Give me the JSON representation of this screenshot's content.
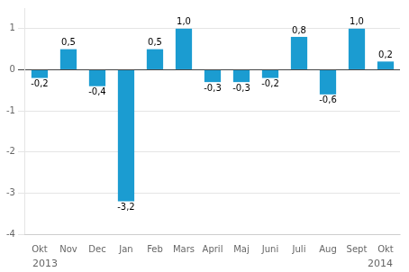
{
  "chart_data": {
    "type": "bar",
    "categories": [
      "Okt",
      "Nov",
      "Dec",
      "Jan",
      "Feb",
      "Mars",
      "April",
      "Maj",
      "Juni",
      "Juli",
      "Aug",
      "Sept",
      "Okt"
    ],
    "values": [
      -0.2,
      0.5,
      -0.4,
      -3.2,
      0.5,
      1.0,
      -0.3,
      -0.3,
      -0.2,
      0.8,
      -0.6,
      1.0,
      0.2
    ],
    "value_labels": [
      "-0,2",
      "0,5",
      "-0,4",
      "-3,2",
      "0,5",
      "1,0",
      "-0,3",
      "-0,3",
      "-0,2",
      "0,8",
      "-0,6",
      "1,0",
      "0,2"
    ],
    "data_labels": true,
    "color": "#1b9cd1",
    "ylim": [
      -4,
      1.5
    ],
    "yticks": [
      -4,
      -3,
      -2,
      -1,
      0,
      1
    ],
    "grid": true,
    "annotations": [
      "2013",
      "2014"
    ]
  }
}
